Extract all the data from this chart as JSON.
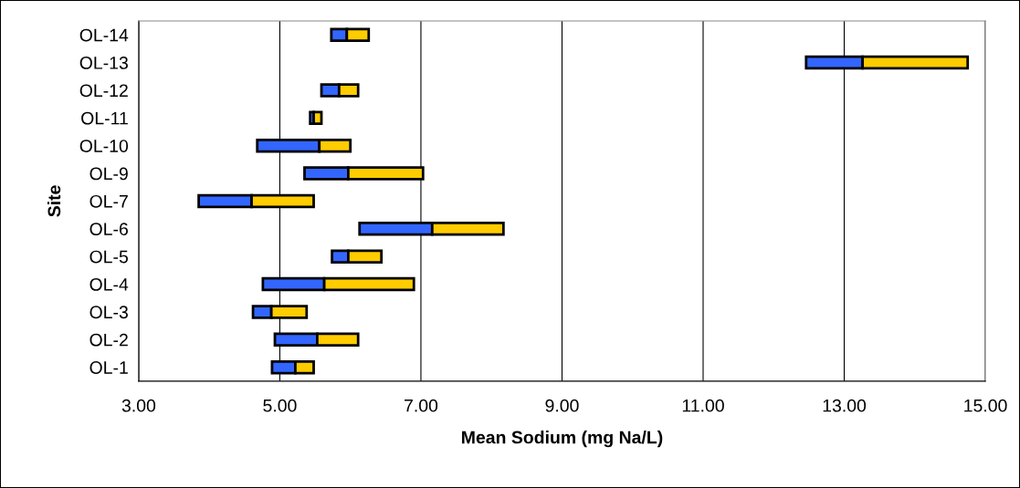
{
  "chart_data": {
    "type": "bar",
    "orientation": "horizontal",
    "xlabel": "Mean Sodium (mg Na/L)",
    "ylabel": "Site",
    "categories": [
      "OL-14",
      "OL-13",
      "OL-12",
      "OL-11",
      "OL-10",
      "OL-9",
      "OL-7",
      "OL-6",
      "OL-5",
      "OL-4",
      "OL-3",
      "OL-2",
      "OL-1"
    ],
    "series": [
      {
        "color": "#3366ff",
        "base": [
          5.73,
          12.46,
          5.59,
          5.43,
          4.68,
          5.35,
          3.85,
          6.13,
          5.74,
          4.76,
          4.62,
          4.93,
          4.89
        ],
        "values": [
          0.22,
          0.8,
          0.25,
          0.05,
          0.88,
          0.62,
          0.75,
          1.03,
          0.23,
          0.87,
          0.26,
          0.6,
          0.33
        ]
      },
      {
        "color": "#ffcc00",
        "base": [
          5.95,
          13.26,
          5.84,
          5.48,
          5.56,
          5.97,
          4.6,
          7.16,
          5.97,
          5.63,
          4.88,
          5.53,
          5.22
        ],
        "values": [
          0.31,
          1.49,
          0.27,
          0.11,
          0.44,
          1.06,
          0.88,
          1.01,
          0.47,
          1.27,
          0.5,
          0.58,
          0.26
        ]
      }
    ],
    "xlim": [
      3,
      15
    ],
    "xticks": [
      {
        "value": 3,
        "label": "3.00"
      },
      {
        "value": 5,
        "label": "5.00"
      },
      {
        "value": 7,
        "label": "7.00"
      },
      {
        "value": 9,
        "label": "9.00"
      },
      {
        "value": 11,
        "label": "11.00"
      },
      {
        "value": 13,
        "label": "13.00"
      },
      {
        "value": 15,
        "label": "15.00"
      }
    ],
    "grid": "x"
  }
}
